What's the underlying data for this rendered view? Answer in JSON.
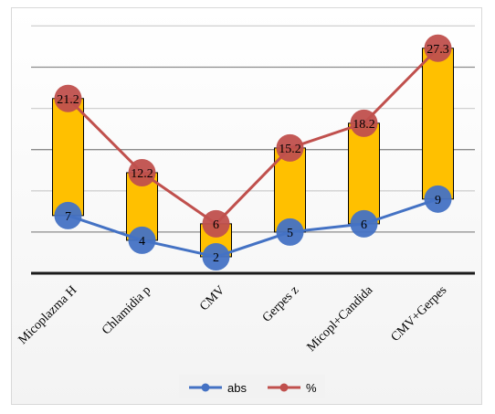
{
  "chart_data": {
    "type": "line",
    "categories": [
      "Micoplazma H",
      "Chlamidia p",
      "CMV",
      "Gerpes z",
      "Micopl+Candida",
      "CMV+Gerpes"
    ],
    "series": [
      {
        "name": "abs",
        "values": [
          7,
          4,
          2,
          5,
          6,
          9
        ],
        "color": "#4472c4"
      },
      {
        "name": "%",
        "values": [
          21.2,
          12.2,
          6,
          15.2,
          18.2,
          27.3
        ],
        "color": "#c0504d"
      }
    ],
    "high_low_bars": {
      "color": "#ffc000"
    },
    "legend": {
      "position": "bottom",
      "entries": [
        "abs",
        "%"
      ]
    },
    "grid": true,
    "title": "",
    "xlabel": "",
    "ylabel": ""
  }
}
